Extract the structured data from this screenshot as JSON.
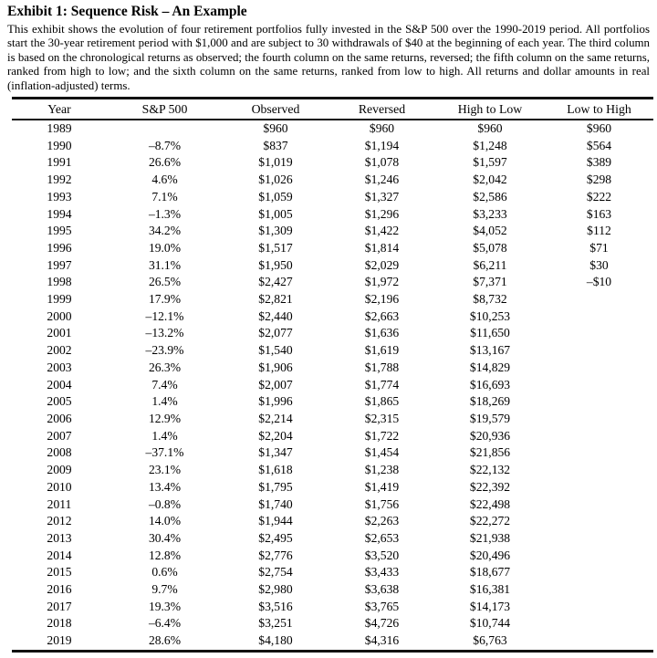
{
  "page": {
    "title": "Exhibit 1: Sequence Risk – An Example",
    "description": "This exhibit shows the evolution of four retirement portfolios fully invested in the S&P 500 over the 1990-2019 period. All portfolios start the 30-year retirement period with $1,000 and are subject to 30 withdrawals of $40 at the beginning of each year. The third column is based on the chronological returns as observed; the fourth column on the same returns, reversed; the fifth column on the same returns, ranked from high to low; and the sixth column on the same returns, ranked from low to high. All returns and dollar amounts in real (inflation-adjusted) terms."
  },
  "colors": {
    "text": "#000000",
    "background": "#ffffff",
    "rule": "#111111"
  },
  "table": {
    "columns": [
      "Year",
      "S&P 500",
      "Observed",
      "Reversed",
      "High to Low",
      "Low to High"
    ],
    "rows": [
      [
        "1989",
        "",
        "$960",
        "$960",
        "$960",
        "$960"
      ],
      [
        "1990",
        "–8.7%",
        "$837",
        "$1,194",
        "$1,248",
        "$564"
      ],
      [
        "1991",
        "26.6%",
        "$1,019",
        "$1,078",
        "$1,597",
        "$389"
      ],
      [
        "1992",
        "4.6%",
        "$1,026",
        "$1,246",
        "$2,042",
        "$298"
      ],
      [
        "1993",
        "7.1%",
        "$1,059",
        "$1,327",
        "$2,586",
        "$222"
      ],
      [
        "1994",
        "–1.3%",
        "$1,005",
        "$1,296",
        "$3,233",
        "$163"
      ],
      [
        "1995",
        "34.2%",
        "$1,309",
        "$1,422",
        "$4,052",
        "$112"
      ],
      [
        "1996",
        "19.0%",
        "$1,517",
        "$1,814",
        "$5,078",
        "$71"
      ],
      [
        "1997",
        "31.1%",
        "$1,950",
        "$2,029",
        "$6,211",
        "$30"
      ],
      [
        "1998",
        "26.5%",
        "$2,427",
        "$1,972",
        "$7,371",
        "–$10"
      ],
      [
        "1999",
        "17.9%",
        "$2,821",
        "$2,196",
        "$8,732",
        ""
      ],
      [
        "2000",
        "–12.1%",
        "$2,440",
        "$2,663",
        "$10,253",
        ""
      ],
      [
        "2001",
        "–13.2%",
        "$2,077",
        "$1,636",
        "$11,650",
        ""
      ],
      [
        "2002",
        "–23.9%",
        "$1,540",
        "$1,619",
        "$13,167",
        ""
      ],
      [
        "2003",
        "26.3%",
        "$1,906",
        "$1,788",
        "$14,829",
        ""
      ],
      [
        "2004",
        "7.4%",
        "$2,007",
        "$1,774",
        "$16,693",
        ""
      ],
      [
        "2005",
        "1.4%",
        "$1,996",
        "$1,865",
        "$18,269",
        ""
      ],
      [
        "2006",
        "12.9%",
        "$2,214",
        "$2,315",
        "$19,579",
        ""
      ],
      [
        "2007",
        "1.4%",
        "$2,204",
        "$1,722",
        "$20,936",
        ""
      ],
      [
        "2008",
        "–37.1%",
        "$1,347",
        "$1,454",
        "$21,856",
        ""
      ],
      [
        "2009",
        "23.1%",
        "$1,618",
        "$1,238",
        "$22,132",
        ""
      ],
      [
        "2010",
        "13.4%",
        "$1,795",
        "$1,419",
        "$22,392",
        ""
      ],
      [
        "2011",
        "–0.8%",
        "$1,740",
        "$1,756",
        "$22,498",
        ""
      ],
      [
        "2012",
        "14.0%",
        "$1,944",
        "$2,263",
        "$22,272",
        ""
      ],
      [
        "2013",
        "30.4%",
        "$2,495",
        "$2,653",
        "$21,938",
        ""
      ],
      [
        "2014",
        "12.8%",
        "$2,776",
        "$3,520",
        "$20,496",
        ""
      ],
      [
        "2015",
        "0.6%",
        "$2,754",
        "$3,433",
        "$18,677",
        ""
      ],
      [
        "2016",
        "9.7%",
        "$2,980",
        "$3,638",
        "$16,381",
        ""
      ],
      [
        "2017",
        "19.3%",
        "$3,516",
        "$3,765",
        "$14,173",
        ""
      ],
      [
        "2018",
        "–6.4%",
        "$3,251",
        "$4,726",
        "$10,744",
        ""
      ],
      [
        "2019",
        "28.6%",
        "$4,180",
        "$4,316",
        "$6,763",
        ""
      ]
    ]
  }
}
